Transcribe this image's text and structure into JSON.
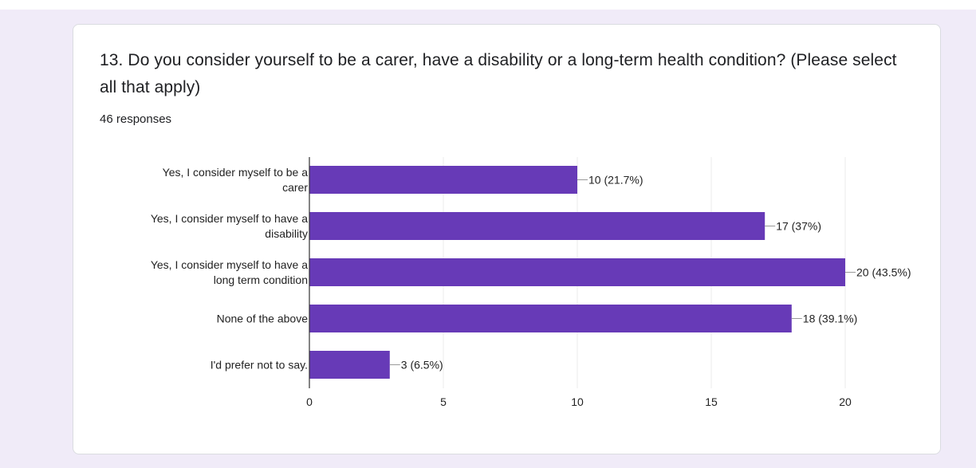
{
  "question": {
    "title": "13. Do you consider yourself to be a carer, have a disability or a long-term health condition? (Please select all that apply)",
    "responses": "46 responses"
  },
  "colors": {
    "bar": "#673ab7",
    "grid": "#ebebeb",
    "axis": "#333333",
    "text": "#222222"
  },
  "chart_data": {
    "type": "bar",
    "orientation": "horizontal",
    "categories": [
      [
        "Yes, I consider myself to be a",
        "carer"
      ],
      [
        "Yes, I consider myself to have a",
        "disability"
      ],
      [
        "Yes, I consider myself to have a",
        "long term condition"
      ],
      [
        "None of the above"
      ],
      [
        "I'd prefer not to say."
      ]
    ],
    "values": [
      10,
      17,
      20,
      18,
      3
    ],
    "labels": [
      "10 (21.7%)",
      "17 (37%)",
      "20 (43.5%)",
      "18 (39.1%)",
      "3 (6.5%)"
    ],
    "xlim": [
      0,
      20
    ],
    "xticks": [
      0,
      5,
      10,
      15,
      20
    ],
    "grid": true
  }
}
